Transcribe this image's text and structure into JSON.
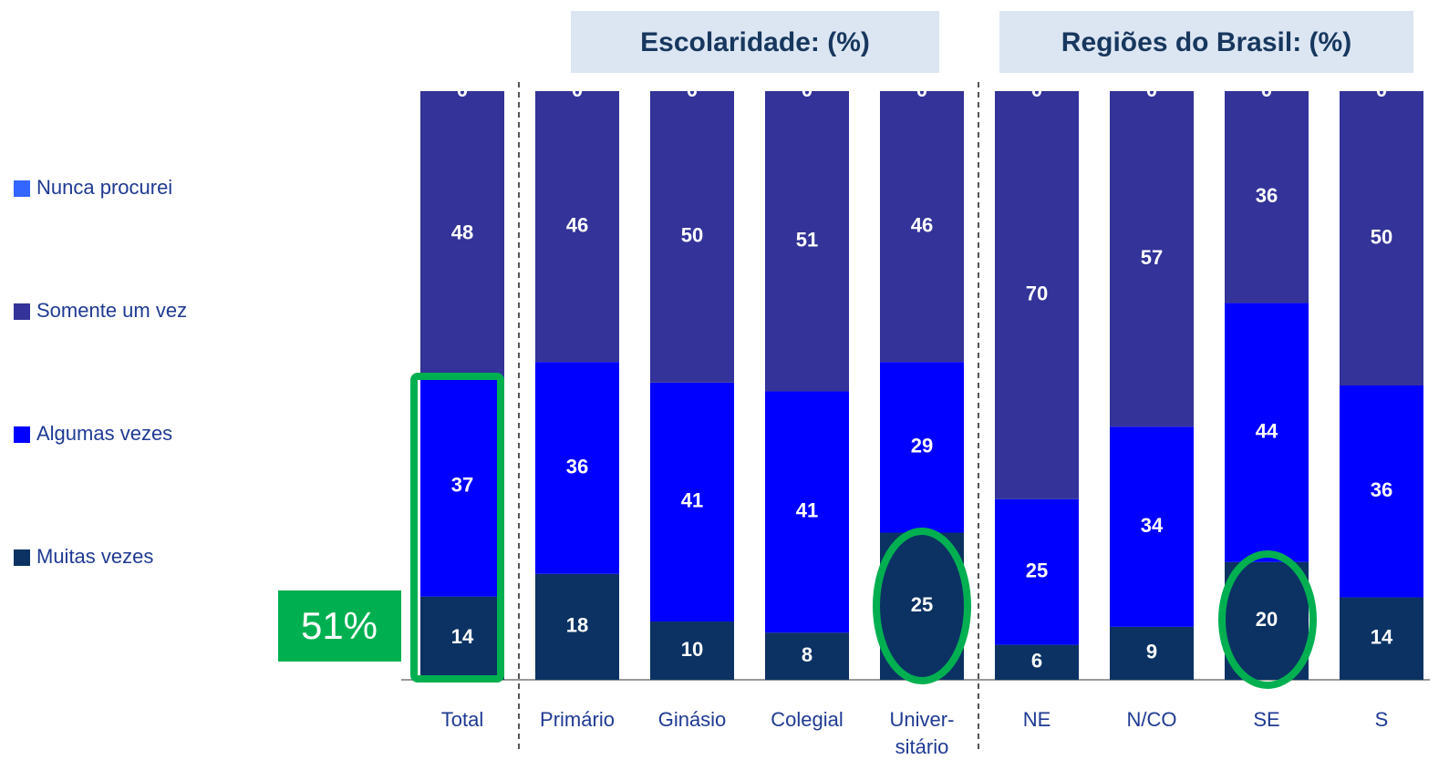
{
  "chart_data": {
    "type": "bar",
    "stacking": "percent",
    "annotations": [
      "Escolaridade: (%)",
      "Regiões do Brasil: (%)",
      "51%"
    ],
    "categories": [
      "Total",
      "Primário",
      "Ginásio",
      "Colegial",
      "Univer-\nsitário",
      "NE",
      "N/CO",
      "SE",
      "S"
    ],
    "series": [
      {
        "name": "Muitas vezes",
        "color": "#0b3263",
        "values": [
          14,
          18,
          10,
          8,
          25,
          6,
          9,
          20,
          14
        ]
      },
      {
        "name": "Algumas vezes",
        "color": "#0000ff",
        "values": [
          37,
          36,
          41,
          41,
          29,
          25,
          34,
          44,
          36
        ]
      },
      {
        "name": "Somente um vez",
        "color": "#333399",
        "values": [
          48,
          46,
          50,
          51,
          46,
          70,
          57,
          36,
          50
        ]
      },
      {
        "name": "Nunca procurei",
        "color": "#3366ff",
        "values": [
          0,
          0,
          0,
          0,
          0,
          0,
          0,
          0,
          0
        ]
      }
    ]
  }
}
